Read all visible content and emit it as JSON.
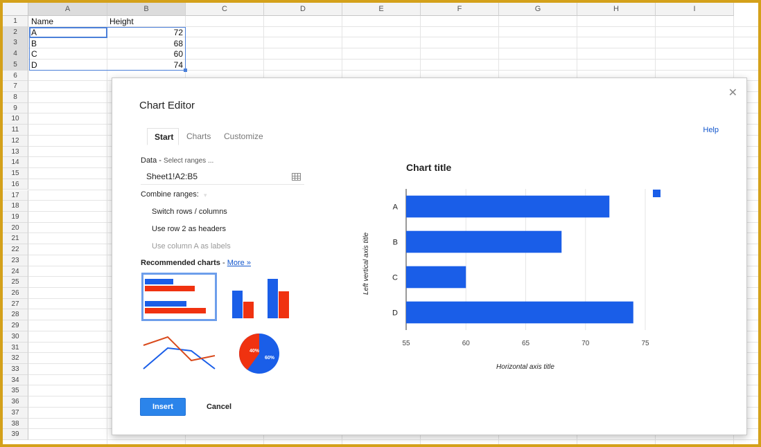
{
  "sheet": {
    "columns": [
      "A",
      "B",
      "C",
      "D",
      "E",
      "F",
      "G",
      "H",
      "I"
    ],
    "rows": [
      "1",
      "2",
      "3",
      "4",
      "5",
      "6",
      "7",
      "8",
      "9",
      "10",
      "11",
      "12",
      "13",
      "14",
      "15",
      "16",
      "17",
      "18",
      "19",
      "20",
      "21",
      "22",
      "23",
      "24",
      "25",
      "26",
      "27",
      "28",
      "29",
      "30",
      "31",
      "32",
      "33",
      "34",
      "35",
      "36",
      "37",
      "38",
      "39"
    ],
    "header": {
      "name": "Name",
      "height": "Height"
    },
    "data": [
      {
        "name": "A",
        "height": "72"
      },
      {
        "name": "B",
        "height": "68"
      },
      {
        "name": "C",
        "height": "60"
      },
      {
        "name": "D",
        "height": "74"
      }
    ]
  },
  "dialog": {
    "title": "Chart Editor",
    "tabs": [
      "Start",
      "Charts",
      "Customize"
    ],
    "help": "Help",
    "data_label": "Data",
    "data_hint": "Select ranges ...",
    "range_value": "Sheet1!A2:B5",
    "combine_label": "Combine ranges:",
    "options": [
      "Switch rows / columns",
      "Use row 2 as headers",
      "Use column A as labels"
    ],
    "recommended_label": "Recommended charts",
    "more_link": "More »",
    "pie_labels": [
      "40%",
      "60%"
    ],
    "insert_label": "Insert",
    "cancel_label": "Cancel"
  },
  "chart_data": {
    "type": "bar",
    "orientation": "horizontal",
    "title": "Chart title",
    "categories": [
      "A",
      "B",
      "C",
      "D"
    ],
    "values": [
      72,
      68,
      60,
      74
    ],
    "xlabel": "Horizontal axis title",
    "ylabel": "Left vertical axis title",
    "xlim": [
      55,
      75
    ],
    "xticks": [
      "55",
      "60",
      "65",
      "70",
      "75"
    ],
    "grid": true,
    "legend": "top-right",
    "color": "#1a5ee8"
  }
}
